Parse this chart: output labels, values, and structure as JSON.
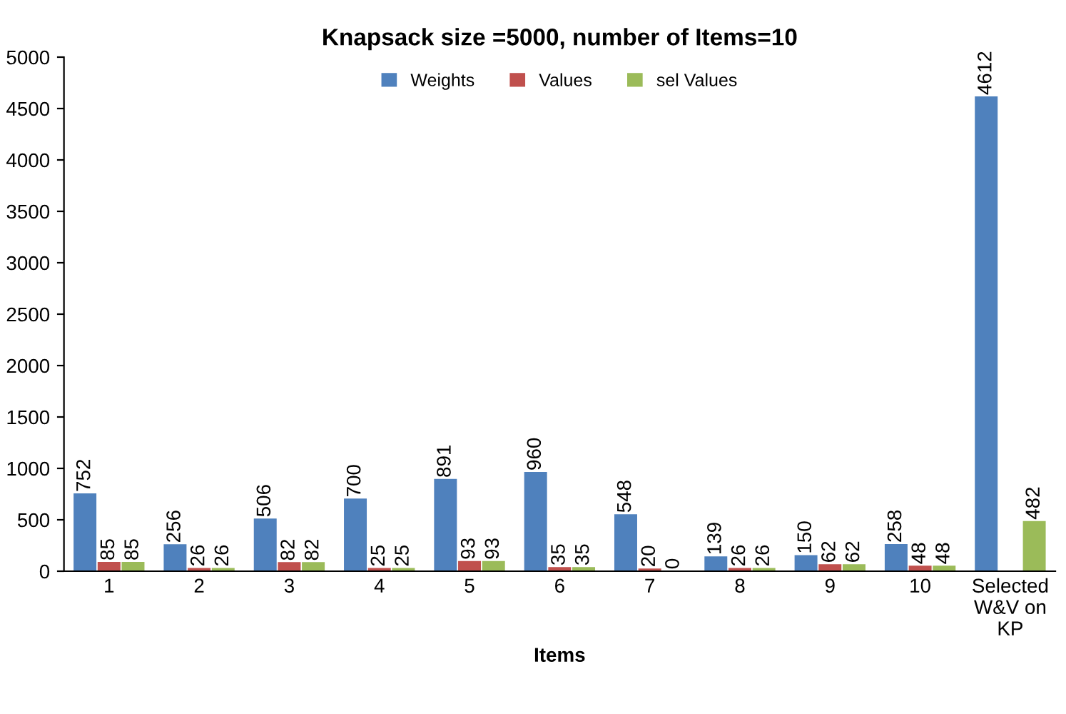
{
  "chart_data": {
    "type": "bar",
    "title": "Knapsack size =5000, number of Items=10",
    "xlabel": "Items",
    "categories": [
      "1",
      "2",
      "3",
      "4",
      "5",
      "6",
      "7",
      "8",
      "9",
      "10",
      "Selected\nW&V on\nKP"
    ],
    "series": [
      {
        "name": "Weights",
        "color": "#4f81bd",
        "values": [
          752,
          256,
          506,
          700,
          891,
          960,
          548,
          139,
          150,
          258,
          4612
        ]
      },
      {
        "name": "Values",
        "color": "#c0504d",
        "values": [
          85,
          26,
          82,
          25,
          93,
          35,
          20,
          26,
          62,
          48,
          null
        ]
      },
      {
        "name": "sel Values",
        "color": "#9bbb59",
        "values": [
          85,
          26,
          82,
          25,
          93,
          35,
          0,
          26,
          62,
          48,
          482
        ]
      }
    ],
    "ylim": [
      0,
      5000
    ],
    "yticks": [
      0,
      500,
      1000,
      1500,
      2000,
      2500,
      3000,
      3500,
      4000,
      4500,
      5000
    ],
    "grid": false,
    "legend": "top",
    "data_labels": true
  }
}
